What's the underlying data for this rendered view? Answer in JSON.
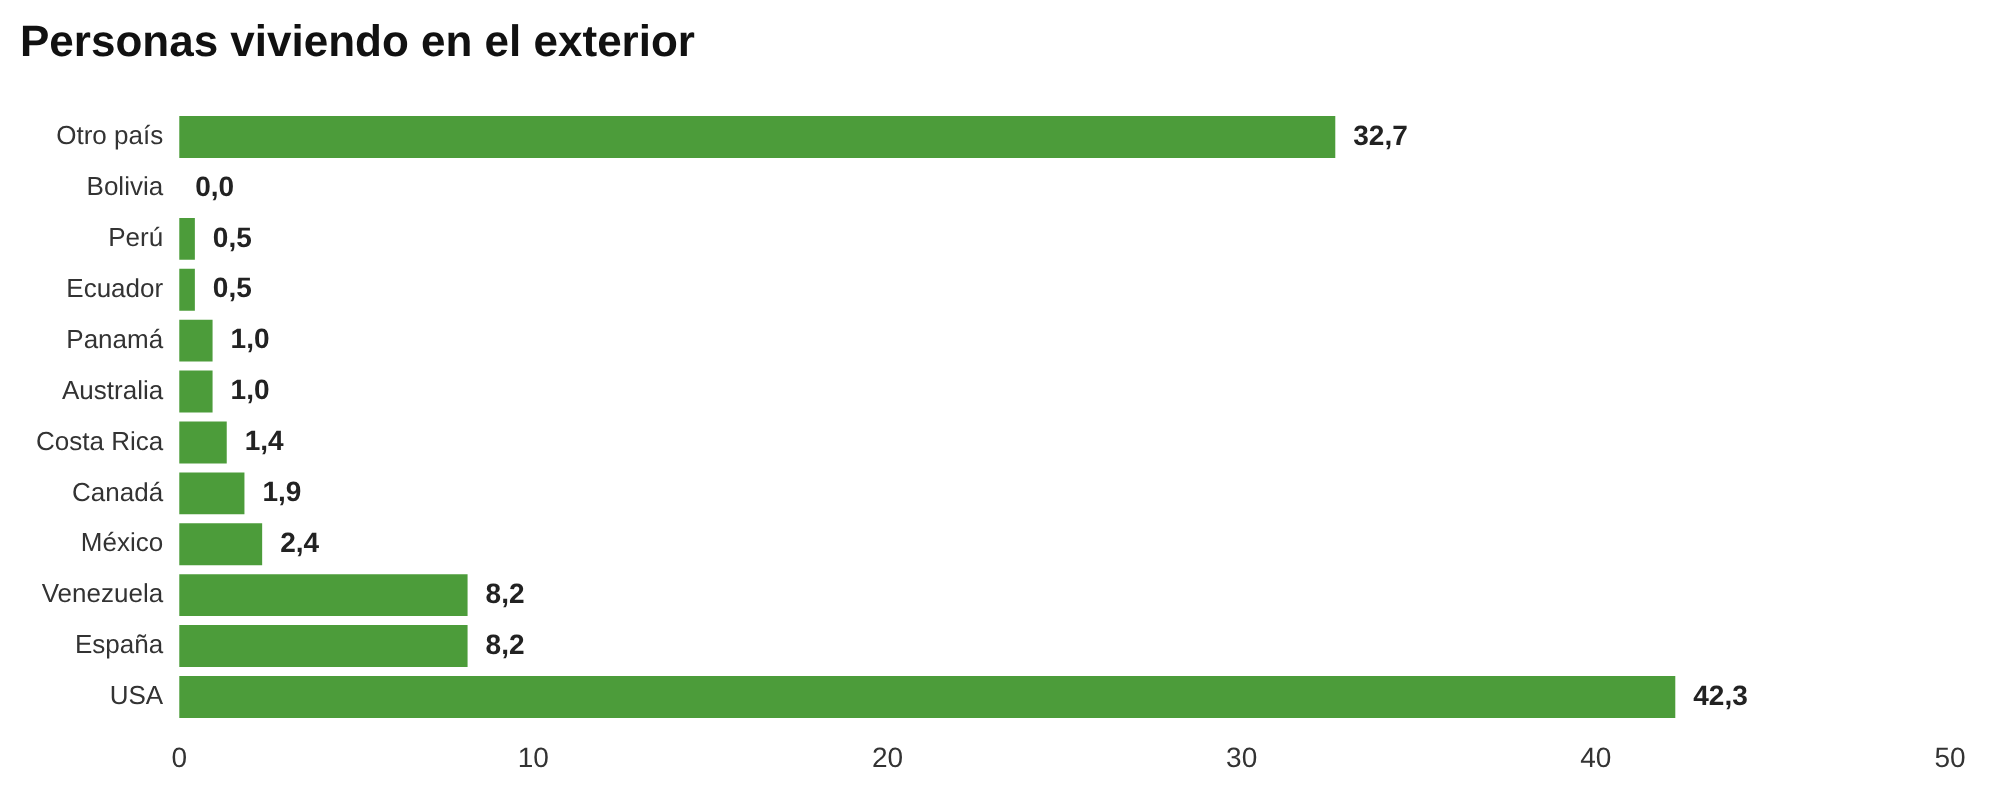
{
  "chart_data": {
    "type": "bar",
    "orientation": "horizontal",
    "title": "Personas viviendo en el exterior",
    "categories": [
      "Otro país",
      "Bolivia",
      "Perú",
      "Ecuador",
      "Panamá",
      "Australia",
      "Costa Rica",
      "Canadá",
      "México",
      "Venezuela",
      "España",
      "USA"
    ],
    "values": [
      32.7,
      0.0,
      0.5,
      0.5,
      1.0,
      1.0,
      1.4,
      1.9,
      2.4,
      8.2,
      8.2,
      42.3
    ],
    "value_labels": [
      "32,7",
      "0,0",
      "0,5",
      "0,5",
      "1,0",
      "1,0",
      "1,4",
      "1,9",
      "2,4",
      "8,2",
      "8,2",
      "42,3"
    ],
    "color": "#4c9c3a",
    "xlim": [
      0,
      50
    ],
    "xticks": [
      0,
      10,
      20,
      30,
      40,
      50
    ],
    "grid": false,
    "legend": false
  }
}
